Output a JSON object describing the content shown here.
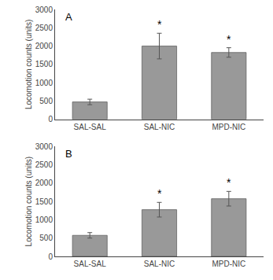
{
  "chart_data": [
    {
      "type": "bar",
      "title": "A",
      "categories": [
        "SAL-SAL",
        "SAL-NIC",
        "MPD-NIC"
      ],
      "values": [
        475,
        2000,
        1825
      ],
      "errors": [
        75,
        350,
        130
      ],
      "color": "#999999",
      "ylabel": "Locomotion counts (units)",
      "ylim": [
        0,
        3000
      ],
      "yticks": [
        0,
        500,
        1000,
        1500,
        2000,
        2500,
        3000
      ],
      "grid": false,
      "annotations": [
        {
          "text": "*",
          "x": "SAL-NIC"
        },
        {
          "text": "*",
          "x": "MPD-NIC"
        }
      ]
    },
    {
      "type": "bar",
      "title": "B",
      "categories": [
        "SAL-SAL",
        "SAL-NIC",
        "MPD-NIC"
      ],
      "values": [
        575,
        1275,
        1575
      ],
      "errors": [
        75,
        200,
        200
      ],
      "color": "#999999",
      "ylabel": "Locomotion counts (units)",
      "ylim": [
        0,
        3000
      ],
      "yticks": [
        0,
        500,
        1000,
        1500,
        2000,
        2500,
        3000
      ],
      "grid": false,
      "annotations": [
        {
          "text": "*",
          "x": "SAL-NIC"
        },
        {
          "text": "*",
          "x": "MPD-NIC"
        }
      ]
    }
  ]
}
